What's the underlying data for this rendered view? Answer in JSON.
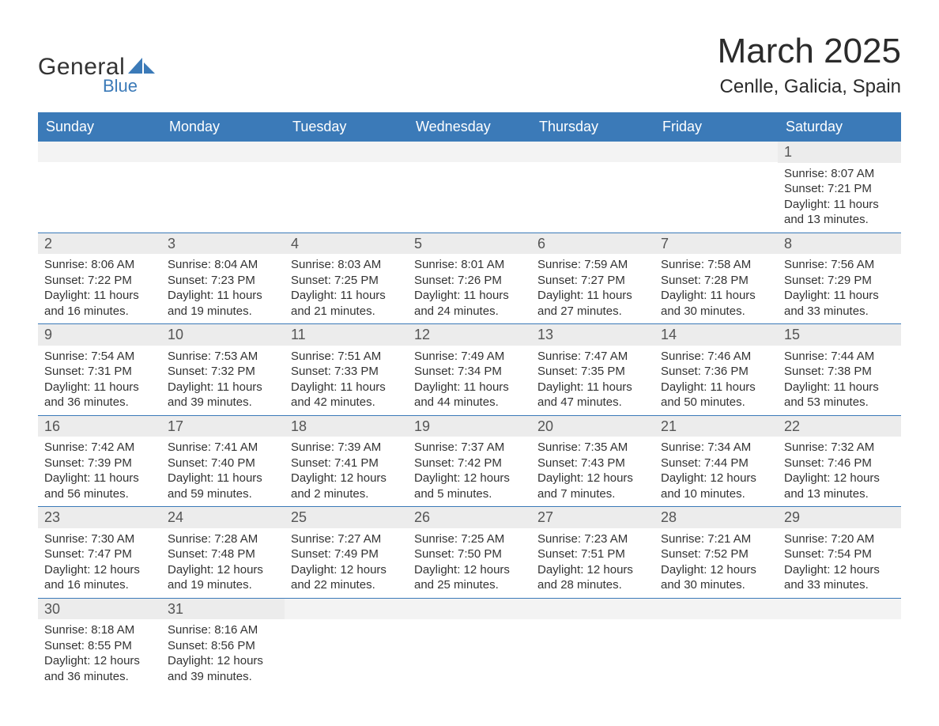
{
  "brand": {
    "word1": "General",
    "word2": "Blue",
    "text_color": "#333333",
    "accent_color": "#3b7ab8"
  },
  "header": {
    "month_title": "March 2025",
    "location": "Cenlle, Galicia, Spain"
  },
  "styling": {
    "header_bg": "#3b7ab8",
    "header_text": "#ffffff",
    "daynum_bg": "#ececec",
    "daynum_bg_empty": "#f3f3f3",
    "text_color": "#333333",
    "row_divider": "#3b7ab8",
    "page_bg": "#ffffff",
    "month_title_fontsize": 44,
    "location_fontsize": 24,
    "weekday_fontsize": 18,
    "daynum_fontsize": 18,
    "detail_fontsize": 15
  },
  "weekdays": [
    "Sunday",
    "Monday",
    "Tuesday",
    "Wednesday",
    "Thursday",
    "Friday",
    "Saturday"
  ],
  "weeks": [
    [
      null,
      null,
      null,
      null,
      null,
      null,
      {
        "n": "1",
        "sunrise": "Sunrise: 8:07 AM",
        "sunset": "Sunset: 7:21 PM",
        "day1": "Daylight: 11 hours",
        "day2": "and 13 minutes."
      }
    ],
    [
      {
        "n": "2",
        "sunrise": "Sunrise: 8:06 AM",
        "sunset": "Sunset: 7:22 PM",
        "day1": "Daylight: 11 hours",
        "day2": "and 16 minutes."
      },
      {
        "n": "3",
        "sunrise": "Sunrise: 8:04 AM",
        "sunset": "Sunset: 7:23 PM",
        "day1": "Daylight: 11 hours",
        "day2": "and 19 minutes."
      },
      {
        "n": "4",
        "sunrise": "Sunrise: 8:03 AM",
        "sunset": "Sunset: 7:25 PM",
        "day1": "Daylight: 11 hours",
        "day2": "and 21 minutes."
      },
      {
        "n": "5",
        "sunrise": "Sunrise: 8:01 AM",
        "sunset": "Sunset: 7:26 PM",
        "day1": "Daylight: 11 hours",
        "day2": "and 24 minutes."
      },
      {
        "n": "6",
        "sunrise": "Sunrise: 7:59 AM",
        "sunset": "Sunset: 7:27 PM",
        "day1": "Daylight: 11 hours",
        "day2": "and 27 minutes."
      },
      {
        "n": "7",
        "sunrise": "Sunrise: 7:58 AM",
        "sunset": "Sunset: 7:28 PM",
        "day1": "Daylight: 11 hours",
        "day2": "and 30 minutes."
      },
      {
        "n": "8",
        "sunrise": "Sunrise: 7:56 AM",
        "sunset": "Sunset: 7:29 PM",
        "day1": "Daylight: 11 hours",
        "day2": "and 33 minutes."
      }
    ],
    [
      {
        "n": "9",
        "sunrise": "Sunrise: 7:54 AM",
        "sunset": "Sunset: 7:31 PM",
        "day1": "Daylight: 11 hours",
        "day2": "and 36 minutes."
      },
      {
        "n": "10",
        "sunrise": "Sunrise: 7:53 AM",
        "sunset": "Sunset: 7:32 PM",
        "day1": "Daylight: 11 hours",
        "day2": "and 39 minutes."
      },
      {
        "n": "11",
        "sunrise": "Sunrise: 7:51 AM",
        "sunset": "Sunset: 7:33 PM",
        "day1": "Daylight: 11 hours",
        "day2": "and 42 minutes."
      },
      {
        "n": "12",
        "sunrise": "Sunrise: 7:49 AM",
        "sunset": "Sunset: 7:34 PM",
        "day1": "Daylight: 11 hours",
        "day2": "and 44 minutes."
      },
      {
        "n": "13",
        "sunrise": "Sunrise: 7:47 AM",
        "sunset": "Sunset: 7:35 PM",
        "day1": "Daylight: 11 hours",
        "day2": "and 47 minutes."
      },
      {
        "n": "14",
        "sunrise": "Sunrise: 7:46 AM",
        "sunset": "Sunset: 7:36 PM",
        "day1": "Daylight: 11 hours",
        "day2": "and 50 minutes."
      },
      {
        "n": "15",
        "sunrise": "Sunrise: 7:44 AM",
        "sunset": "Sunset: 7:38 PM",
        "day1": "Daylight: 11 hours",
        "day2": "and 53 minutes."
      }
    ],
    [
      {
        "n": "16",
        "sunrise": "Sunrise: 7:42 AM",
        "sunset": "Sunset: 7:39 PM",
        "day1": "Daylight: 11 hours",
        "day2": "and 56 minutes."
      },
      {
        "n": "17",
        "sunrise": "Sunrise: 7:41 AM",
        "sunset": "Sunset: 7:40 PM",
        "day1": "Daylight: 11 hours",
        "day2": "and 59 minutes."
      },
      {
        "n": "18",
        "sunrise": "Sunrise: 7:39 AM",
        "sunset": "Sunset: 7:41 PM",
        "day1": "Daylight: 12 hours",
        "day2": "and 2 minutes."
      },
      {
        "n": "19",
        "sunrise": "Sunrise: 7:37 AM",
        "sunset": "Sunset: 7:42 PM",
        "day1": "Daylight: 12 hours",
        "day2": "and 5 minutes."
      },
      {
        "n": "20",
        "sunrise": "Sunrise: 7:35 AM",
        "sunset": "Sunset: 7:43 PM",
        "day1": "Daylight: 12 hours",
        "day2": "and 7 minutes."
      },
      {
        "n": "21",
        "sunrise": "Sunrise: 7:34 AM",
        "sunset": "Sunset: 7:44 PM",
        "day1": "Daylight: 12 hours",
        "day2": "and 10 minutes."
      },
      {
        "n": "22",
        "sunrise": "Sunrise: 7:32 AM",
        "sunset": "Sunset: 7:46 PM",
        "day1": "Daylight: 12 hours",
        "day2": "and 13 minutes."
      }
    ],
    [
      {
        "n": "23",
        "sunrise": "Sunrise: 7:30 AM",
        "sunset": "Sunset: 7:47 PM",
        "day1": "Daylight: 12 hours",
        "day2": "and 16 minutes."
      },
      {
        "n": "24",
        "sunrise": "Sunrise: 7:28 AM",
        "sunset": "Sunset: 7:48 PM",
        "day1": "Daylight: 12 hours",
        "day2": "and 19 minutes."
      },
      {
        "n": "25",
        "sunrise": "Sunrise: 7:27 AM",
        "sunset": "Sunset: 7:49 PM",
        "day1": "Daylight: 12 hours",
        "day2": "and 22 minutes."
      },
      {
        "n": "26",
        "sunrise": "Sunrise: 7:25 AM",
        "sunset": "Sunset: 7:50 PM",
        "day1": "Daylight: 12 hours",
        "day2": "and 25 minutes."
      },
      {
        "n": "27",
        "sunrise": "Sunrise: 7:23 AM",
        "sunset": "Sunset: 7:51 PM",
        "day1": "Daylight: 12 hours",
        "day2": "and 28 minutes."
      },
      {
        "n": "28",
        "sunrise": "Sunrise: 7:21 AM",
        "sunset": "Sunset: 7:52 PM",
        "day1": "Daylight: 12 hours",
        "day2": "and 30 minutes."
      },
      {
        "n": "29",
        "sunrise": "Sunrise: 7:20 AM",
        "sunset": "Sunset: 7:54 PM",
        "day1": "Daylight: 12 hours",
        "day2": "and 33 minutes."
      }
    ],
    [
      {
        "n": "30",
        "sunrise": "Sunrise: 8:18 AM",
        "sunset": "Sunset: 8:55 PM",
        "day1": "Daylight: 12 hours",
        "day2": "and 36 minutes."
      },
      {
        "n": "31",
        "sunrise": "Sunrise: 8:16 AM",
        "sunset": "Sunset: 8:56 PM",
        "day1": "Daylight: 12 hours",
        "day2": "and 39 minutes."
      },
      null,
      null,
      null,
      null,
      null
    ]
  ]
}
